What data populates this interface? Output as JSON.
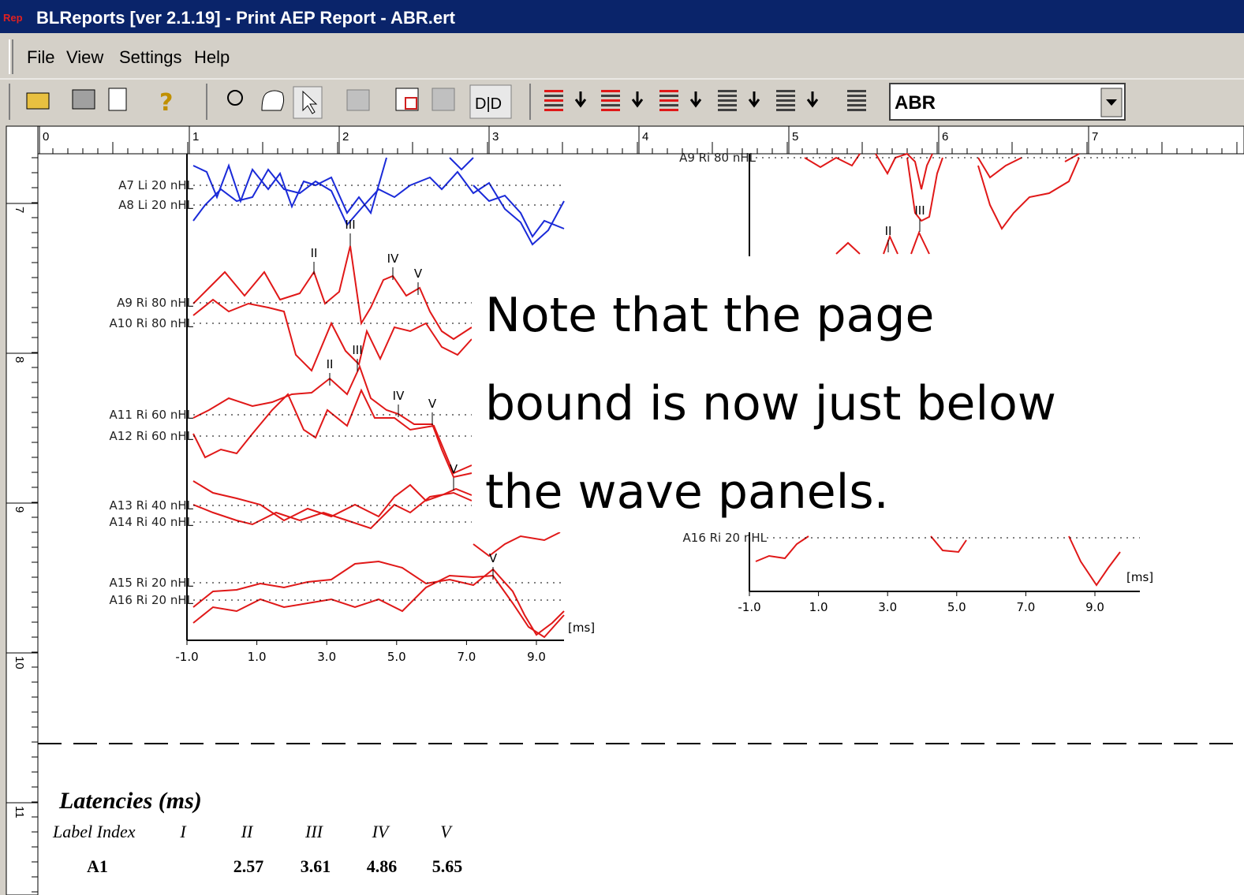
{
  "window": {
    "title": "BLReports [ver 2.1.19] - Print AEP Report - ABR.ert",
    "icon": "Rep"
  },
  "menu": [
    "File",
    "View",
    "Settings",
    "Help"
  ],
  "toolbar": {
    "combo": "ABR"
  },
  "ruler": {
    "horizontal": [
      "0",
      "1",
      "2",
      "3",
      "4",
      "5",
      "6",
      "7"
    ],
    "vertical": [
      "7",
      "8",
      "9",
      "10",
      "11"
    ]
  },
  "left_panel": {
    "traces": [
      "A7 Li 20 nHL",
      "A8 Li 20 nHL",
      "A9 Ri 80 nHL",
      "A10 Ri 80 nHL",
      "A11 Ri 60 nHL",
      "A12 Ri 60 nHL",
      "A13 Ri 40 nHL",
      "A14 Ri 40 nHL",
      "A15 Ri 20 nHL",
      "A16 Ri 20 nHL"
    ],
    "peaks": [
      "III",
      "II",
      "IV",
      "V",
      "III",
      "II",
      "IV",
      "V",
      "V",
      "V"
    ],
    "x_ticks": [
      "-1.0",
      "1.0",
      "3.0",
      "5.0",
      "7.0",
      "9.0"
    ],
    "x_unit": "[ms]"
  },
  "right_panel": {
    "traces": [
      "A9 Ri 80 nHL",
      "A16 Ri 20 nHL"
    ],
    "peaks": [
      "III",
      "II"
    ],
    "x_ticks": [
      "-1.0",
      "1.0",
      "3.0",
      "5.0",
      "7.0",
      "9.0"
    ],
    "x_unit": "[ms]"
  },
  "note": [
    "Note that the page",
    "bound is now just below",
    "the wave panels."
  ],
  "latencies": {
    "title": "Latencies (ms)",
    "header": [
      "Label Index",
      "I",
      "II",
      "III",
      "IV",
      "V"
    ],
    "rows": [
      {
        "label": "A1",
        "values": [
          null,
          2.57,
          3.61,
          4.86,
          5.65
        ]
      }
    ]
  }
}
